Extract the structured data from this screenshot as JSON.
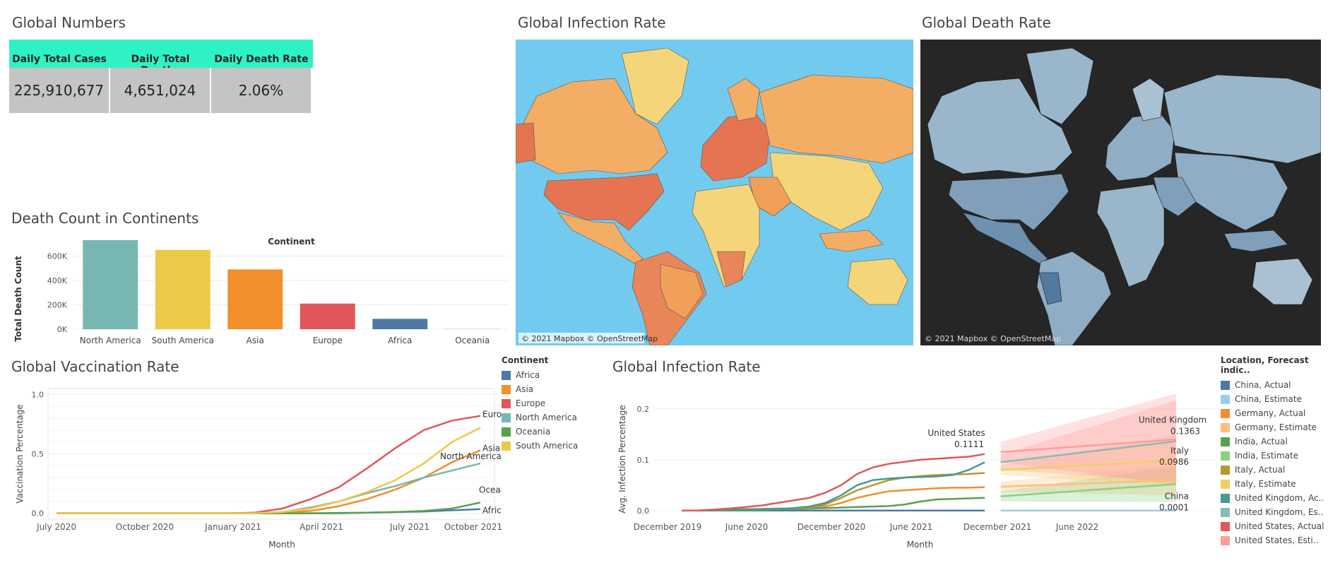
{
  "titles": {
    "global_numbers": "Global Numbers",
    "infection_map": "Global Infection Rate",
    "death_map": "Global Death Rate",
    "death_continents": "Death Count in Continents",
    "vaccination": "Global Vaccination Rate",
    "infection_trend": "Global Infection Rate"
  },
  "kpi": {
    "headers": [
      "Daily Total Cases",
      "Daily Total Deaths",
      "Daily Death Rate"
    ],
    "values": [
      "225,910,677",
      "4,651,024",
      "2.06%"
    ],
    "header_color": "#2ff2c4",
    "value_bg": "#c4c4c4"
  },
  "maps": {
    "credit": "© 2021 Mapbox © OpenStreetMap",
    "infection_bg": "#72cbef",
    "death_bg": "#262626"
  },
  "chart_data": [
    {
      "type": "bar",
      "title": "Death Count in Continents",
      "column_header": "Continent",
      "ylabel": "Total Death Count",
      "categories": [
        "North America",
        "South America",
        "Asia",
        "Europe",
        "Africa",
        "Oceania"
      ],
      "values": [
        730000,
        650000,
        490000,
        210000,
        85000,
        1000
      ],
      "colors": [
        "#76b7b2",
        "#edc948",
        "#f28e2b",
        "#e15759",
        "#4e79a7",
        "#59a14f"
      ],
      "yticks": [
        "0K",
        "200K",
        "400K",
        "600K"
      ],
      "ytick_values": [
        0,
        200000,
        400000,
        600000
      ],
      "ylim": [
        0,
        730000
      ]
    },
    {
      "type": "line",
      "title": "Global Vaccination Rate",
      "xlabel": "Month",
      "ylabel": "Vaccination Percentage",
      "xticks": [
        "July 2020",
        "October 2020",
        "January 2021",
        "April 2021",
        "July 2021",
        "October 2021"
      ],
      "yticks": [
        "0.0",
        "0.5",
        "1.0"
      ],
      "ylim": [
        -0.05,
        1.05
      ],
      "x": [
        0,
        1,
        2,
        3,
        4,
        5,
        6,
        7,
        8,
        9,
        10,
        11,
        12,
        13,
        14,
        15
      ],
      "legend_title": "Continent",
      "series": [
        {
          "name": "Africa",
          "color": "#4e79a7",
          "values": [
            0,
            0,
            0,
            0,
            0,
            0,
            0,
            0,
            0,
            0,
            0.003,
            0.005,
            0.01,
            0.015,
            0.025,
            0.035
          ]
        },
        {
          "name": "Asia",
          "color": "#f28e2b",
          "values": [
            0,
            0,
            0,
            0,
            0,
            0,
            0,
            0,
            0.005,
            0.02,
            0.06,
            0.12,
            0.2,
            0.3,
            0.43,
            0.53
          ]
        },
        {
          "name": "Europe",
          "color": "#e15759",
          "values": [
            0,
            0,
            0,
            0,
            0,
            0,
            0,
            0.005,
            0.04,
            0.12,
            0.22,
            0.38,
            0.55,
            0.7,
            0.78,
            0.82
          ]
        },
        {
          "name": "North America",
          "color": "#76b7b2",
          "values": [
            0,
            0,
            0,
            0,
            0,
            0,
            0,
            0,
            0.01,
            0.05,
            0.1,
            0.17,
            0.23,
            0.3,
            0.36,
            0.42
          ]
        },
        {
          "name": "Oceania",
          "color": "#59a14f",
          "values": [
            0,
            0,
            0,
            0,
            0,
            0,
            0,
            0,
            0,
            0,
            0,
            0.005,
            0.01,
            0.02,
            0.04,
            0.09
          ]
        },
        {
          "name": "South America",
          "color": "#edc948",
          "values": [
            0,
            0,
            0,
            0,
            0,
            0,
            0,
            0,
            0.01,
            0.04,
            0.1,
            0.18,
            0.28,
            0.42,
            0.6,
            0.72
          ]
        }
      ],
      "end_labels": [
        "Africa",
        "Asia",
        "Europe",
        "North America",
        "Oceania",
        ""
      ]
    },
    {
      "type": "line",
      "title": "Global Infection Rate",
      "xlabel": "Month",
      "ylabel": "Avg. Infection Percentage",
      "xticks": [
        "December 2019",
        "June 2020",
        "December 2020",
        "June 2021",
        "December 2021",
        "June 2022"
      ],
      "yticks": [
        "0.0",
        "0.1",
        "0.2"
      ],
      "ylim": [
        -0.01,
        0.24
      ],
      "legend_title": "Location, Forecast indic..",
      "actual_x": [
        0,
        1,
        2,
        3,
        4,
        5,
        6,
        7,
        8,
        9,
        10,
        11,
        12,
        13,
        14,
        15,
        16,
        17,
        18,
        19
      ],
      "forecast_x": [
        20,
        31
      ],
      "series": [
        {
          "name": "China",
          "actual_color": "#4e79a7",
          "estimate_color": "#a0cbe8",
          "actual": [
            0,
            0,
            0,
            0,
            0,
            0,
            0,
            0,
            0,
            0,
            0,
            0,
            0,
            0,
            0,
            0,
            0,
            0,
            0,
            0
          ],
          "forecast": [
            0.0001,
            0.0001
          ],
          "band": [
            0,
            0
          ],
          "band_color": "#a0cbe8"
        },
        {
          "name": "Germany",
          "actual_color": "#f28e2b",
          "estimate_color": "#ffbe7d",
          "actual": [
            0,
            0,
            0.001,
            0.002,
            0.002,
            0.003,
            0.003,
            0.004,
            0.005,
            0.008,
            0.015,
            0.025,
            0.032,
            0.038,
            0.04,
            0.042,
            0.044,
            0.045,
            0.045,
            0.046
          ],
          "forecast": [
            0.047,
            0.06
          ],
          "band": [
            0.01,
            0.03
          ],
          "band_color": "#ffbe7d"
        },
        {
          "name": "India",
          "actual_color": "#59a14f",
          "estimate_color": "#8cd17d",
          "actual": [
            0,
            0,
            0,
            0,
            0,
            0.001,
            0.002,
            0.003,
            0.004,
            0.005,
            0.006,
            0.007,
            0.008,
            0.009,
            0.012,
            0.018,
            0.022,
            0.023,
            0.024,
            0.025
          ],
          "forecast": [
            0.028,
            0.052
          ],
          "band": [
            0.01,
            0.035
          ],
          "band_color": "#8cd17d"
        },
        {
          "name": "Italy",
          "actual_color": "#b6992d",
          "estimate_color": "#f1ce63",
          "actual": [
            0,
            0,
            0.001,
            0.002,
            0.003,
            0.003,
            0.004,
            0.004,
            0.005,
            0.012,
            0.025,
            0.04,
            0.05,
            0.06,
            0.065,
            0.068,
            0.07,
            0.071,
            0.072,
            0.074
          ],
          "forecast": [
            0.08,
            0.0986
          ],
          "band": [
            0.01,
            0.05
          ],
          "band_color": "#f1ce63"
        },
        {
          "name": "United Kingdom",
          "actual_color": "#499894",
          "estimate_color": "#86bcb6",
          "actual": [
            0,
            0,
            0.001,
            0.002,
            0.002,
            0.003,
            0.003,
            0.005,
            0.008,
            0.015,
            0.03,
            0.05,
            0.06,
            0.063,
            0.065,
            0.066,
            0.067,
            0.07,
            0.08,
            0.095
          ],
          "forecast": [
            0.095,
            0.1363
          ],
          "band": [
            0.015,
            0.08
          ],
          "band_color": "#ff9d9a"
        },
        {
          "name": "United States",
          "actual_color": "#e15759",
          "estimate_color": "#ff9d9a",
          "actual": [
            0,
            0,
            0.002,
            0.004,
            0.007,
            0.01,
            0.015,
            0.02,
            0.025,
            0.035,
            0.05,
            0.072,
            0.085,
            0.092,
            0.096,
            0.1,
            0.102,
            0.104,
            0.106,
            0.1111
          ],
          "forecast": [
            0.115,
            0.14
          ],
          "band": [
            0.02,
            0.09
          ],
          "band_color": "#ff9d9a"
        }
      ],
      "annotations": [
        {
          "label": "United States",
          "value": "0.1111"
        },
        {
          "label": "United Kingdom",
          "value": "0.1363"
        },
        {
          "label": "Italy",
          "value": "0.0986"
        },
        {
          "label": "China",
          "value": "0.0001"
        }
      ],
      "legend": [
        {
          "label": "China, Actual",
          "color": "#4e79a7"
        },
        {
          "label": "China, Estimate",
          "color": "#a0cbe8"
        },
        {
          "label": "Germany, Actual",
          "color": "#f28e2b"
        },
        {
          "label": "Germany, Estimate",
          "color": "#ffbe7d"
        },
        {
          "label": "India, Actual",
          "color": "#59a14f"
        },
        {
          "label": "India, Estimate",
          "color": "#8cd17d"
        },
        {
          "label": "Italy, Actual",
          "color": "#b6992d"
        },
        {
          "label": "Italy, Estimate",
          "color": "#f1ce63"
        },
        {
          "label": "United Kingdom, Ac..",
          "color": "#499894"
        },
        {
          "label": "United Kingdom, Es..",
          "color": "#86bcb6"
        },
        {
          "label": "United States, Actual",
          "color": "#e15759"
        },
        {
          "label": "United States, Esti..",
          "color": "#ff9d9a"
        }
      ]
    }
  ]
}
